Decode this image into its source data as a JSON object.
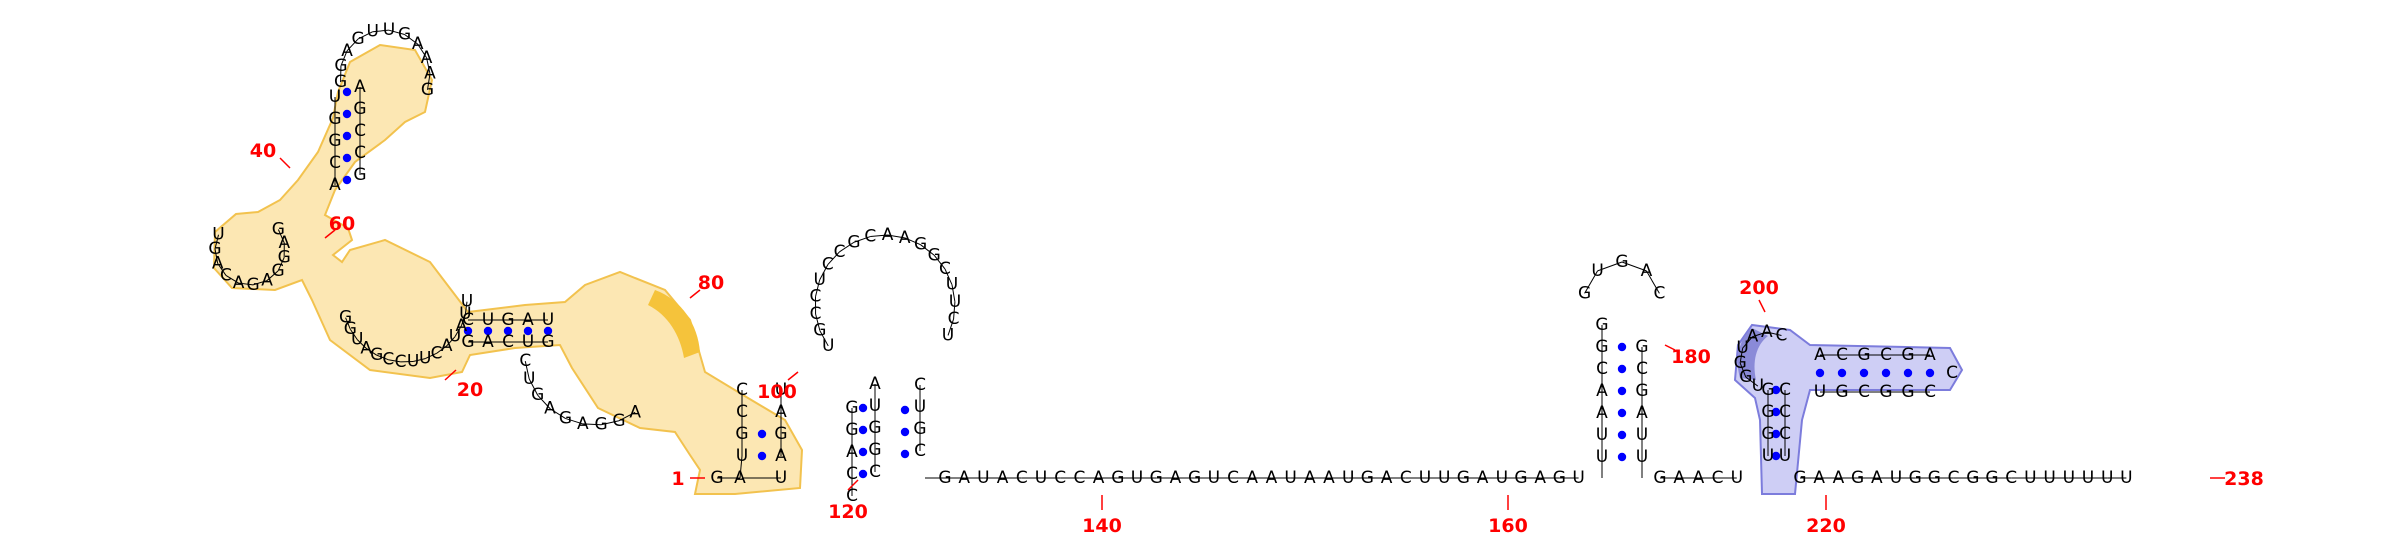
{
  "colors": {
    "base_pair": "#0000ff",
    "backbone": "#000000",
    "numbering": "#ff0000",
    "highlight_fill": "#fbe3a6",
    "highlight_stroke": "#f2c24e",
    "highlight_fill_strong": "#f5c33b",
    "highlight2_fill": "#c9c9f4",
    "highlight2_stroke": "#7c7cdc",
    "highlight2_fill_strong": "#8a8ad8"
  },
  "numbering": {
    "label_1": "1",
    "label_20": "20",
    "label_40": "40",
    "label_60": "60",
    "label_80": "80",
    "label_100": "100",
    "label_120": "120",
    "label_140": "140",
    "label_160": "160",
    "label_180": "180",
    "label_200": "200",
    "label_220": "220",
    "label_238": "238"
  },
  "sequence": {
    "tail": "GAUACUCCAGUGAGUCAAUAAUGACUUGAUGAGU",
    "pre_hairpin3": "GAACU",
    "post_hairpin3": "GAAGAUGGCGGCUUUUUU",
    "hairpin2_stem5": "UUAACGG",
    "hairpin2_loop": "UGAC",
    "hairpin2_stem3": "CGAUUU"
  }
}
